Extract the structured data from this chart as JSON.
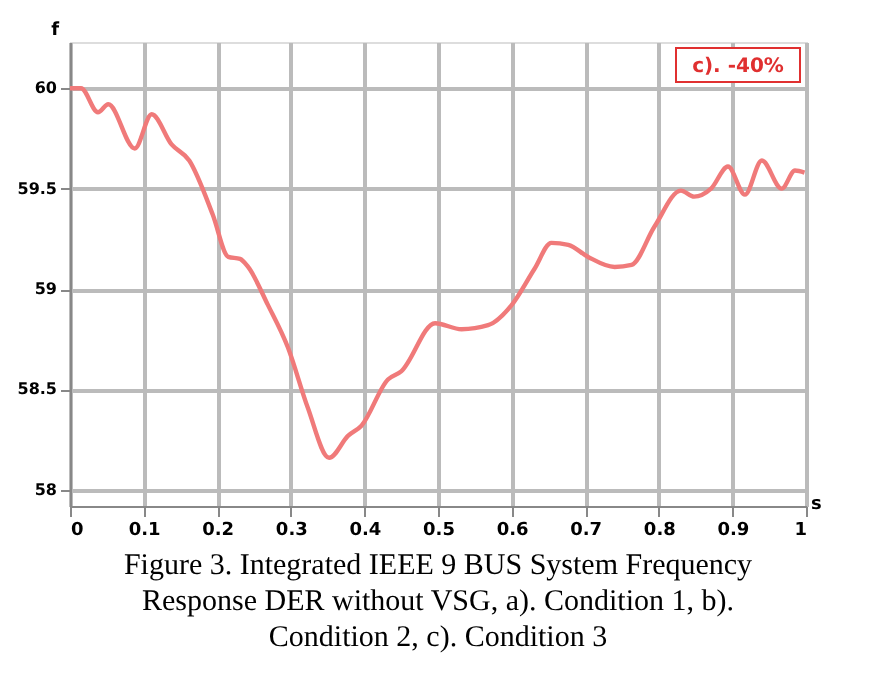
{
  "chart_data": {
    "type": "line",
    "title": "Figure 3.  Integrated IEEE 9 BUS System Frequency Response DER without VSG, a). Condition 1, b). Condition 2, c). Condition 3",
    "xlabel": "s",
    "ylabel": "f",
    "x": [
      0,
      0.015,
      0.038,
      0.052,
      0.088,
      0.111,
      0.138,
      0.162,
      0.194,
      0.215,
      0.231,
      0.242,
      0.269,
      0.296,
      0.323,
      0.352,
      0.378,
      0.396,
      0.432,
      0.45,
      0.496,
      0.532,
      0.568,
      0.6,
      0.631,
      0.654,
      0.677,
      0.704,
      0.74,
      0.763,
      0.794,
      0.83,
      0.848,
      0.871,
      0.894,
      0.917,
      0.94,
      0.967,
      0.985,
      0.998
    ],
    "series": [
      {
        "color": "#f07a7a",
        "values": [
          60,
          60,
          59.88,
          59.92,
          59.7,
          59.87,
          59.72,
          59.64,
          59.37,
          59.16,
          59.15,
          59.11,
          58.92,
          58.71,
          58.41,
          58.16,
          58.27,
          58.32,
          58.55,
          58.59,
          58.83,
          58.8,
          58.82,
          58.92,
          59.1,
          59.23,
          59.22,
          59.16,
          59.11,
          59.12,
          59.31,
          59.49,
          59.46,
          59.5,
          59.61,
          59.47,
          59.64,
          59.5,
          59.59,
          59.58
        ]
      }
    ],
    "xlim": [
      0,
      1
    ],
    "xticks": [
      0,
      0.1,
      0.2,
      0.3,
      0.4,
      0.5,
      0.6,
      0.7,
      0.8,
      0.9,
      1
    ],
    "ylim": [
      57.92,
      60.23
    ],
    "yticks": [
      58,
      58.5,
      59,
      59.5,
      60
    ],
    "annotations": [
      "c). -40%"
    ],
    "grid": true,
    "marker": "none",
    "line_style": "solid"
  }
}
